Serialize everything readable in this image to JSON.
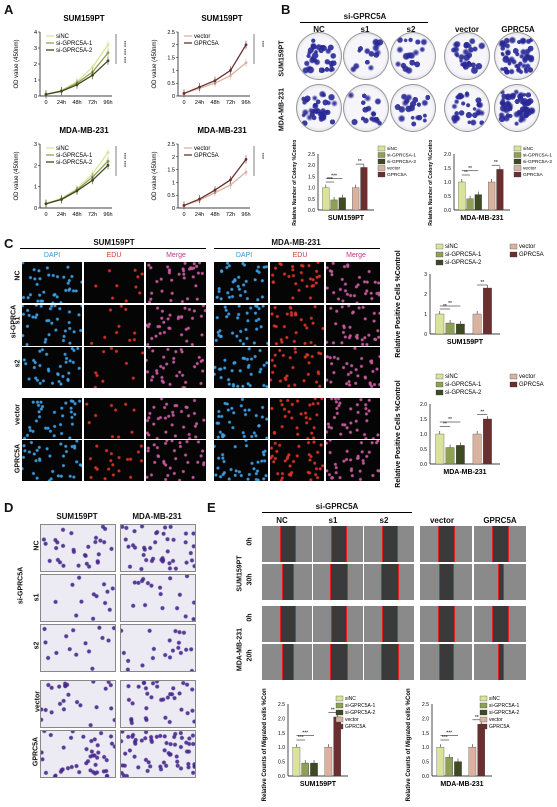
{
  "panels": {
    "A": "A",
    "B": "B",
    "C": "C",
    "D": "D",
    "E": "E"
  },
  "colors": {
    "siNC": "#d9e39a",
    "si1": "#8ea055",
    "si2": "#3e4a22",
    "vector": "#d9b3a0",
    "gprc5a": "#6b2f2f",
    "dapi": "#2f9bd6",
    "edu": "#d23a2a",
    "merge": "#c0398a"
  },
  "panelA": {
    "ylabel": "OD value (450nm)",
    "xticks": [
      "0",
      "24h",
      "48h",
      "72h",
      "96h"
    ],
    "sig": "***"
  },
  "panelB": {
    "group": "si-GPRC5A",
    "cols": [
      "NC",
      "s1",
      "s2",
      "vector",
      "GPRC5A"
    ],
    "rows": [
      "SUM159PT",
      "MDA-MB-231"
    ],
    "ylabel": "Relative Number of Colony %Control"
  },
  "panelC": {
    "lines": [
      "SUM159PT",
      "MDA-MB-231"
    ],
    "channels": [
      "DAPI",
      "EDU",
      "Merge"
    ],
    "rowgroup": "si-GPRCA",
    "rows": [
      "NC",
      "s1",
      "s2",
      "vector",
      "GPRC5A"
    ],
    "ylabel": "Relative Positive Cells %Control"
  },
  "panelD": {
    "cols": [
      "SUM159PT",
      "MDA-MB-231"
    ],
    "group": "si-GPRC5A",
    "rows": [
      "NC",
      "s1",
      "s2",
      "vector",
      "GPRC5A"
    ]
  },
  "panelE": {
    "group": "si-GPRC5A",
    "cols": [
      "NC",
      "s1",
      "s2",
      "vector",
      "GPRC5A"
    ],
    "lines": [
      "SUM159PT",
      "MDA-MB-231"
    ],
    "times": [
      "0h",
      "30h",
      "0h",
      "20h"
    ],
    "ylabel": "Relative Counts of Migrated cells %Control"
  },
  "chart_data": [
    {
      "id": "A1",
      "type": "line",
      "title": "SUM159PT",
      "xlabel": "",
      "ylabel": "OD value (450nm)",
      "x": [
        "0",
        "24h",
        "48h",
        "72h",
        "96h"
      ],
      "ylim": [
        0,
        4
      ],
      "yticks": [
        0,
        1,
        2,
        3,
        4
      ],
      "series": [
        {
          "name": "siNC",
          "values": [
            0.1,
            0.35,
            0.9,
            1.8,
            3.2
          ]
        },
        {
          "name": "si-GPRC5A-1",
          "values": [
            0.1,
            0.32,
            0.8,
            1.5,
            2.7
          ]
        },
        {
          "name": "si-GPRC5A-2",
          "values": [
            0.1,
            0.3,
            0.7,
            1.3,
            2.2
          ]
        }
      ],
      "sig": [
        "***",
        "***",
        "***"
      ]
    },
    {
      "id": "A2",
      "type": "line",
      "title": "SUM159PT",
      "xlabel": "",
      "ylabel": "OD value (450nm)",
      "x": [
        "0",
        "24h",
        "48h",
        "72h",
        "96h"
      ],
      "ylim": [
        0,
        2.5
      ],
      "yticks": [
        0,
        0.5,
        1,
        1.5,
        2,
        2.5
      ],
      "series": [
        {
          "name": "vector",
          "values": [
            0.1,
            0.3,
            0.5,
            0.8,
            1.3
          ]
        },
        {
          "name": "GPRC5A",
          "values": [
            0.1,
            0.35,
            0.6,
            1.0,
            2.0
          ]
        }
      ],
      "sig": [
        "***"
      ]
    },
    {
      "id": "A3",
      "type": "line",
      "title": "MDA-MB-231",
      "xlabel": "",
      "ylabel": "OD value (450nm)",
      "x": [
        "0",
        "24h",
        "48h",
        "72h",
        "96h"
      ],
      "ylim": [
        0,
        3
      ],
      "yticks": [
        0,
        1,
        2,
        3
      ],
      "series": [
        {
          "name": "siNC",
          "values": [
            0.2,
            0.45,
            0.9,
            1.6,
            2.6
          ]
        },
        {
          "name": "si-GPRC5A-1",
          "values": [
            0.2,
            0.42,
            0.85,
            1.45,
            2.2
          ]
        },
        {
          "name": "si-GPRC5A-2",
          "values": [
            0.2,
            0.4,
            0.8,
            1.3,
            2.0
          ]
        }
      ],
      "sig": [
        "***",
        "***"
      ]
    },
    {
      "id": "A4",
      "type": "line",
      "title": "MDA-MB-231",
      "xlabel": "",
      "ylabel": "OD value (450nm)",
      "x": [
        "0",
        "24h",
        "48h",
        "72h",
        "96h"
      ],
      "ylim": [
        0,
        2.5
      ],
      "yticks": [
        0,
        0.5,
        1,
        1.5,
        2,
        2.5
      ],
      "series": [
        {
          "name": "vector",
          "values": [
            0.1,
            0.3,
            0.6,
            0.9,
            1.4
          ]
        },
        {
          "name": "GPRC5A",
          "values": [
            0.1,
            0.35,
            0.7,
            1.1,
            1.9
          ]
        }
      ],
      "sig": [
        "***"
      ]
    },
    {
      "id": "B1",
      "type": "bar",
      "xlabel": "SUM159PT",
      "ylabel": "Relative Number of Colony %Control",
      "ylim": [
        0,
        2.5
      ],
      "yticks": [
        0.0,
        0.5,
        1.0,
        1.5,
        2.0,
        2.5
      ],
      "categories": [
        "siNC",
        "si-GPRC5A-1",
        "si-GPRC5A-2",
        "vector",
        "GPRC5A"
      ],
      "values": [
        1.0,
        0.45,
        0.55,
        1.0,
        1.9
      ],
      "sig": [
        "***",
        "***",
        "**"
      ]
    },
    {
      "id": "B2",
      "type": "bar",
      "xlabel": "MDA-MB-231",
      "ylabel": "Relative Number of Colony %Control",
      "ylim": [
        0,
        2.0
      ],
      "yticks": [
        0.0,
        0.5,
        1.0,
        1.5,
        2.0
      ],
      "categories": [
        "siNC",
        "si-GPRC5A-1",
        "si-GPRC5A-2",
        "vector",
        "GPRC5A"
      ],
      "values": [
        1.0,
        0.4,
        0.55,
        1.0,
        1.45
      ],
      "sig": [
        "**",
        "**",
        "**"
      ]
    },
    {
      "id": "C1",
      "type": "bar",
      "xlabel": "SUM159PT",
      "ylabel": "Relative Positive Cells %Control",
      "ylim": [
        0,
        3
      ],
      "yticks": [
        0,
        1,
        2,
        3
      ],
      "categories": [
        "siNC",
        "si-GPRC5A-1",
        "si-GPRC5A-2",
        "vector",
        "GPRC5A"
      ],
      "values": [
        1.0,
        0.55,
        0.5,
        1.0,
        2.3
      ],
      "sig": [
        "**",
        "**",
        "**"
      ]
    },
    {
      "id": "C2",
      "type": "bar",
      "xlabel": "MDA-MB-231",
      "ylabel": "Relative Positive Cells %Control",
      "ylim": [
        0,
        2.0
      ],
      "yticks": [
        0.0,
        0.5,
        1.0,
        1.5,
        2.0
      ],
      "categories": [
        "siNC",
        "si-GPRC5A-1",
        "si-GPRC5A-2",
        "vector",
        "GPRC5A"
      ],
      "values": [
        1.0,
        0.55,
        0.62,
        1.0,
        1.5
      ],
      "sig": [
        "**",
        "**",
        "**"
      ]
    },
    {
      "id": "E1",
      "type": "bar",
      "xlabel": "SUM159PT",
      "ylabel": "Relative Counts of Migrated cells %Control",
      "ylim": [
        0,
        2.5
      ],
      "yticks": [
        0.0,
        0.5,
        1.0,
        1.5,
        2.0,
        2.5
      ],
      "categories": [
        "siNC",
        "si-GPRC5A-1",
        "si-GPRC5A-2",
        "vector",
        "GPRC5A"
      ],
      "values": [
        1.0,
        0.45,
        0.45,
        1.0,
        2.05
      ],
      "sig": [
        "***",
        "***",
        "**"
      ]
    },
    {
      "id": "E2",
      "type": "bar",
      "xlabel": "MDA-MB-231",
      "ylabel": "Relative Counts of Migrated cells %Control",
      "ylim": [
        0,
        2.5
      ],
      "yticks": [
        0.0,
        0.5,
        1.0,
        1.5,
        2.0,
        2.5
      ],
      "categories": [
        "siNC",
        "si-GPRC5A-1",
        "si-GPRC5A-2",
        "vector",
        "GPRC5A"
      ],
      "values": [
        1.0,
        0.65,
        0.5,
        1.0,
        1.8
      ],
      "sig": [
        "***",
        "***",
        "**"
      ]
    }
  ]
}
